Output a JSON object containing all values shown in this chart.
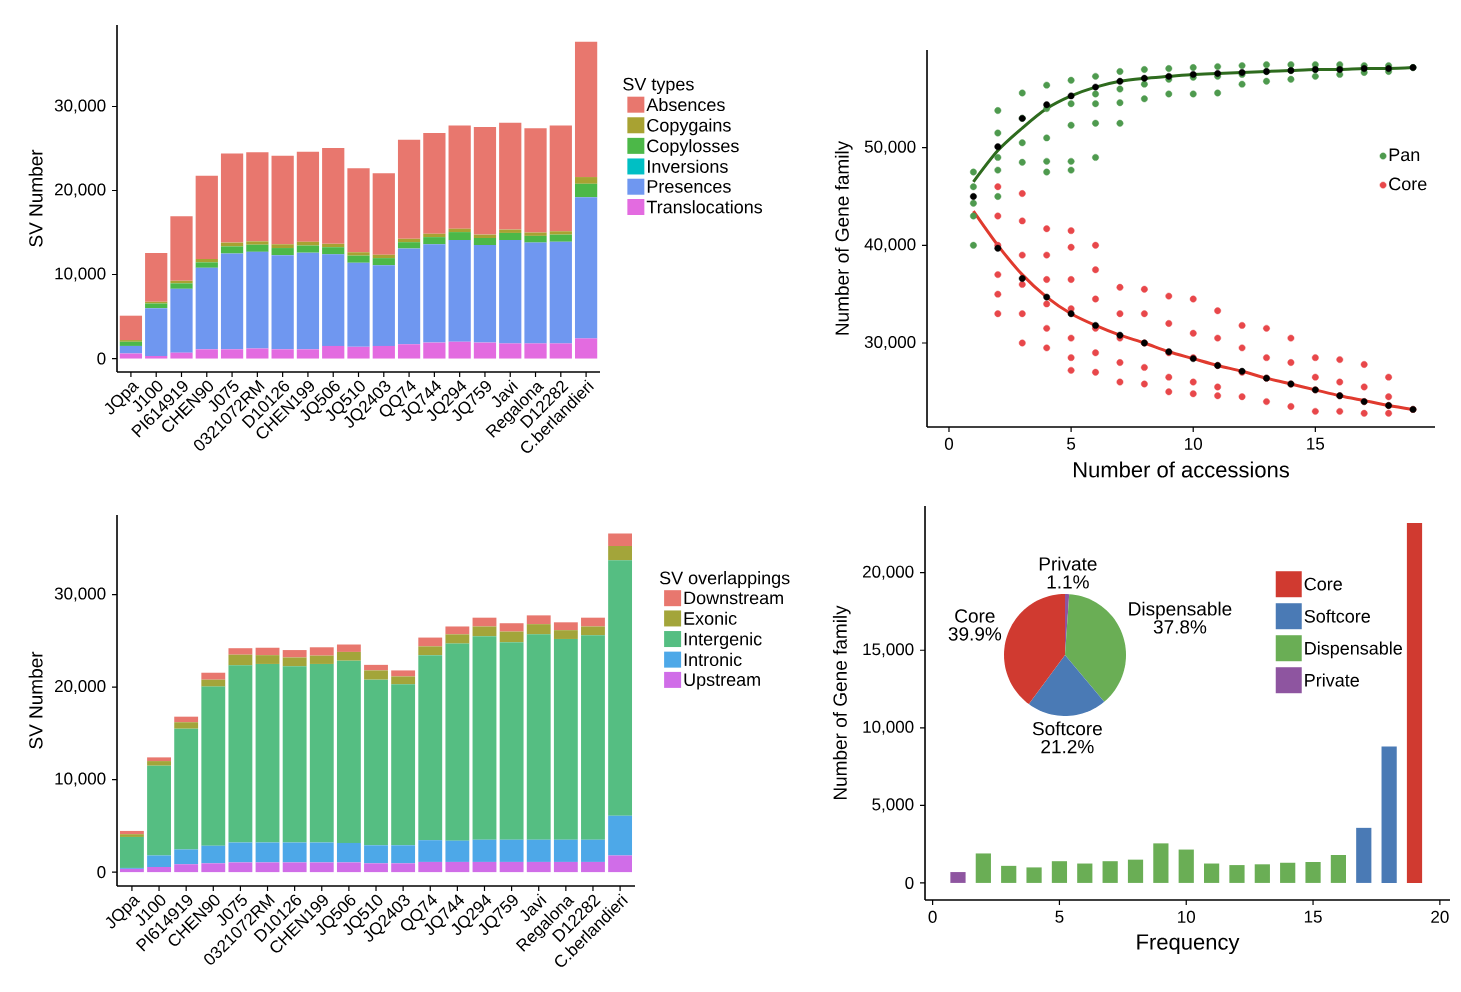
{
  "chart_data": [
    {
      "type": "bar",
      "stacked": true,
      "ylabel": "SV Number",
      "legend_title": "SV types",
      "legend": "right",
      "categories": [
        "JQpa",
        "J100",
        "PI614919",
        "CHEN90",
        "J075",
        "0321072RM",
        "D10126",
        "CHEN199",
        "JQ506",
        "JQ510",
        "JQ2403",
        "QQ74",
        "JQ744",
        "JQ294",
        "JQ759",
        "Javi",
        "Regalona",
        "D12282",
        "C.berlandieri"
      ],
      "ylim": [
        -1600,
        39700
      ],
      "yticks": [
        0,
        {
          "value": 10000,
          "label": "10,000"
        },
        {
          "value": 20000,
          "label": "20,000"
        },
        {
          "value": 30000,
          "label": "30,000"
        }
      ],
      "series": [
        {
          "name": "Translocations",
          "color": "#E36BE0",
          "values": [
            600,
            300,
            700,
            1100,
            1100,
            1200,
            1100,
            1100,
            1500,
            1400,
            1500,
            1700,
            1900,
            2000,
            1900,
            1800,
            1800,
            1800,
            2400
          ]
        },
        {
          "name": "Presences",
          "color": "#6F97F0",
          "values": [
            900,
            5700,
            7600,
            9700,
            11400,
            11500,
            11200,
            11500,
            10900,
            10000,
            9600,
            11400,
            11700,
            12100,
            11600,
            12300,
            12000,
            12100,
            16800
          ]
        },
        {
          "name": "Inversions",
          "color": "#00BFC4",
          "values": [
            null,
            null,
            null,
            null,
            null,
            null,
            null,
            null,
            null,
            null,
            null,
            null,
            null,
            null,
            null,
            null,
            null,
            null,
            null
          ]
        },
        {
          "name": "Copylosses",
          "color": "#4CB848",
          "values": [
            500,
            550,
            650,
            650,
            850,
            850,
            850,
            850,
            850,
            850,
            850,
            750,
            850,
            950,
            850,
            850,
            800,
            850,
            1600
          ]
        },
        {
          "name": "Copygains",
          "color": "#A8A232",
          "values": [
            200,
            200,
            300,
            400,
            450,
            400,
            450,
            450,
            400,
            400,
            400,
            400,
            400,
            400,
            400,
            400,
            400,
            400,
            800
          ]
        },
        {
          "name": "Absences",
          "color": "#E8776E",
          "values": [
            2900,
            5800,
            7700,
            9900,
            10600,
            10600,
            10550,
            10700,
            11400,
            10000,
            9700,
            11800,
            12000,
            12300,
            12800,
            12700,
            12400,
            12600,
            16100
          ]
        }
      ]
    },
    {
      "type": "scatter",
      "xlabel": "Number of accessions",
      "ylabel": "Number of Gene family",
      "legend": "right",
      "xlim": [
        -0.9,
        19.9
      ],
      "ylim": [
        21400,
        60000
      ],
      "xticks": [
        0,
        5,
        10,
        15
      ],
      "yticks": [
        {
          "value": 30000,
          "label": "30,000"
        },
        {
          "value": 40000,
          "label": "40,000"
        },
        {
          "value": 50000,
          "label": "50,000"
        }
      ],
      "series": [
        {
          "name": "Pan",
          "color": "#4E9A4E",
          "marker": "circle",
          "x": [
            1,
            1,
            1,
            1,
            1,
            2,
            2,
            2,
            2,
            2,
            3,
            3,
            3,
            3,
            4,
            4,
            4,
            4,
            4,
            5,
            5,
            5,
            5,
            5,
            6,
            6,
            6,
            6,
            6,
            7,
            7,
            7,
            7,
            8,
            8,
            8,
            9,
            9,
            9,
            10,
            10,
            10,
            11,
            11,
            11,
            12,
            12,
            12,
            13,
            13,
            13,
            14,
            14,
            14,
            15,
            15,
            15,
            16,
            16,
            16,
            17,
            17,
            17,
            18,
            18,
            18,
            19
          ],
          "values": [
            47500,
            46000,
            44300,
            43000,
            40000,
            53800,
            51500,
            49000,
            47700,
            45000,
            55600,
            53000,
            50500,
            48500,
            56400,
            54000,
            51000,
            48600,
            47500,
            56900,
            54500,
            52300,
            48600,
            47700,
            57300,
            55500,
            54500,
            52500,
            49000,
            57800,
            56000,
            54600,
            52500,
            58000,
            56500,
            55000,
            58100,
            57000,
            55500,
            58200,
            57200,
            55500,
            58300,
            57300,
            55600,
            58400,
            57500,
            56500,
            58500,
            57800,
            56800,
            58500,
            57900,
            57000,
            58500,
            58000,
            57300,
            58500,
            58100,
            57500,
            58400,
            58100,
            57700,
            58400,
            58100,
            57800,
            58200
          ]
        },
        {
          "name": "Core",
          "color": "#E8474A",
          "marker": "circle",
          "x": [
            2,
            2,
            2,
            2,
            2,
            2,
            3,
            3,
            3,
            3,
            3,
            3,
            4,
            4,
            4,
            4,
            4,
            4,
            5,
            5,
            5,
            5,
            5,
            5,
            5,
            6,
            6,
            6,
            6,
            6,
            6,
            7,
            7,
            7,
            7,
            7,
            8,
            8,
            8,
            8,
            8,
            9,
            9,
            9,
            9,
            9,
            10,
            10,
            10,
            10,
            10,
            11,
            11,
            11,
            11,
            11,
            12,
            12,
            12,
            12,
            13,
            13,
            13,
            13,
            14,
            14,
            14,
            14,
            15,
            15,
            15,
            15,
            16,
            16,
            16,
            16,
            17,
            17,
            17,
            17,
            18,
            18,
            18,
            18,
            19
          ],
          "values": [
            46000,
            43000,
            40000,
            37000,
            35000,
            33000,
            45300,
            42500,
            39000,
            36000,
            33000,
            30000,
            41700,
            39000,
            36500,
            34000,
            31500,
            29500,
            41500,
            39800,
            36500,
            33500,
            30500,
            28500,
            27200,
            40000,
            37500,
            34500,
            31500,
            29000,
            27000,
            35700,
            33000,
            30500,
            28000,
            26000,
            35500,
            33000,
            30000,
            27500,
            25800,
            34800,
            32000,
            29000,
            26500,
            25000,
            34500,
            31000,
            28500,
            26000,
            24800,
            33300,
            30500,
            27700,
            25500,
            24600,
            31800,
            29500,
            27000,
            24500,
            31500,
            28500,
            26400,
            24000,
            30500,
            28000,
            25800,
            23500,
            28500,
            26500,
            25200,
            23000,
            28300,
            26000,
            24600,
            23000,
            27800,
            25500,
            24000,
            22800,
            26500,
            24500,
            23600,
            22800,
            23200
          ]
        },
        {
          "type": "line",
          "marker": "none",
          "color": "#2E6B1E",
          "x": [
            1,
            2,
            3,
            4,
            5,
            6,
            7,
            8,
            9,
            10,
            11,
            12,
            13,
            14,
            15,
            16,
            17,
            18,
            19
          ],
          "values": [
            46500,
            49700,
            52000,
            54000,
            55300,
            56200,
            56800,
            57100,
            57300,
            57500,
            57600,
            57700,
            57800,
            57900,
            58000,
            58000,
            58100,
            58100,
            58200
          ]
        },
        {
          "type": "line",
          "marker": "none",
          "color": "#E03A2E",
          "x": [
            1,
            2,
            3,
            4,
            5,
            6,
            7,
            8,
            9,
            10,
            11,
            12,
            13,
            14,
            15,
            16,
            17,
            18,
            19
          ],
          "values": [
            43500,
            40000,
            37000,
            34700,
            33000,
            31800,
            30800,
            30000,
            29100,
            28400,
            27700,
            27100,
            26400,
            25800,
            25200,
            24600,
            24100,
            23600,
            23200
          ]
        },
        {
          "color": "#000000",
          "marker": "circle",
          "x": [
            1,
            2,
            3,
            4,
            5,
            6,
            7,
            8,
            9,
            10,
            11,
            12,
            13,
            14,
            15,
            16,
            17,
            18,
            19,
            2,
            3,
            4,
            5,
            6,
            7,
            8,
            9,
            10,
            11,
            12,
            13,
            14,
            15,
            16,
            17,
            18,
            19
          ],
          "values": [
            45000,
            50100,
            53000,
            54400,
            55300,
            56200,
            56800,
            57100,
            57300,
            57500,
            57600,
            57700,
            57800,
            57900,
            58000,
            58000,
            58100,
            58100,
            58200,
            39700,
            36600,
            34700,
            33000,
            31800,
            30800,
            30000,
            29100,
            28400,
            27700,
            27100,
            26400,
            25800,
            25200,
            24600,
            24000,
            23600,
            23200
          ]
        }
      ]
    },
    {
      "type": "bar",
      "stacked": true,
      "ylabel": "SV Number",
      "legend_title": "SV overlappings",
      "legend": "right",
      "categories": [
        "JQpa",
        "J100",
        "PI614919",
        "CHEN90",
        "J075",
        "0321072RM",
        "D10126",
        "CHEN199",
        "JQ506",
        "JQ510",
        "JQ2403",
        "QQ74",
        "JQ744",
        "JQ294",
        "JQ759",
        "Javi",
        "Regalona",
        "D12282",
        "C.berlandieri"
      ],
      "ylim": [
        -1500,
        38600
      ],
      "yticks": [
        0,
        {
          "value": 10000,
          "label": "10,000"
        },
        {
          "value": 20000,
          "label": "20,000"
        },
        {
          "value": 30000,
          "label": "30,000"
        }
      ],
      "series": [
        {
          "name": "Upstream",
          "color": "#D06DE8",
          "values": [
            350,
            550,
            850,
            950,
            1050,
            1050,
            1050,
            1050,
            1050,
            950,
            950,
            1100,
            1100,
            1100,
            1100,
            1100,
            1100,
            1100,
            1800
          ]
        },
        {
          "name": "Intronic",
          "color": "#4DA8E8",
          "values": [
            100,
            1250,
            1600,
            1900,
            2150,
            2150,
            2150,
            2150,
            2100,
            1950,
            1950,
            2350,
            2300,
            2400,
            2400,
            2400,
            2400,
            2400,
            4300
          ]
        },
        {
          "name": "Intergenic",
          "color": "#55BE82",
          "values": [
            3350,
            9700,
            13050,
            17200,
            19150,
            19300,
            19050,
            19300,
            19700,
            17900,
            17400,
            20000,
            21300,
            22000,
            21350,
            22200,
            21700,
            22100,
            27600
          ]
        },
        {
          "name": "Exonic",
          "color": "#A3A53A",
          "values": [
            300,
            500,
            700,
            750,
            1150,
            950,
            950,
            900,
            950,
            1000,
            850,
            950,
            1000,
            1050,
            1150,
            1100,
            950,
            950,
            1550
          ]
        },
        {
          "name": "Downstream",
          "color": "#E8776E",
          "values": [
            350,
            400,
            600,
            750,
            700,
            800,
            800,
            900,
            800,
            600,
            650,
            950,
            850,
            950,
            900,
            950,
            850,
            950,
            1350
          ]
        }
      ]
    },
    {
      "type": "bar",
      "xlabel": "Frequency",
      "ylabel": "Number of Gene family",
      "legend": "top right",
      "xlim": [
        -0.3,
        20.4
      ],
      "ylim": [
        -1100,
        24300
      ],
      "xticks": [
        0,
        5,
        10,
        15,
        20
      ],
      "yticks": [
        0,
        {
          "value": 5000,
          "label": "5,000"
        },
        {
          "value": 10000,
          "label": "10,000"
        },
        {
          "value": 15000,
          "label": "15,000"
        },
        {
          "value": 20000,
          "label": "20,000"
        }
      ],
      "series": [
        {
          "name": "Core",
          "color": "#D03A30",
          "x": [
            19
          ],
          "values": [
            23200
          ]
        },
        {
          "name": "Softcore",
          "color": "#4A7AB5",
          "x": [
            17,
            18
          ],
          "values": [
            3550,
            8800
          ]
        },
        {
          "name": "Dispensable",
          "color": "#6AAE55",
          "x": [
            2,
            3,
            4,
            5,
            6,
            7,
            8,
            9,
            10,
            11,
            12,
            13,
            14,
            15,
            16
          ],
          "values": [
            1900,
            1100,
            1000,
            1400,
            1250,
            1400,
            1500,
            2550,
            2150,
            1250,
            1150,
            1200,
            1300,
            1350,
            1800
          ]
        },
        {
          "name": "Private",
          "color": "#8E55A0",
          "x": [
            1
          ],
          "values": [
            700
          ]
        }
      ]
    },
    {
      "type": "pie",
      "categories": [
        "Private",
        "Dispensable",
        "Softcore",
        "Core"
      ],
      "values": [
        1.1,
        37.8,
        21.2,
        39.9
      ],
      "colors": [
        "#8E55A0",
        "#6AAE55",
        "#4A7AB5",
        "#D03A30"
      ],
      "value_labels": [
        "1.1%",
        "37.8%",
        "21.2%",
        "39.9%"
      ]
    }
  ]
}
